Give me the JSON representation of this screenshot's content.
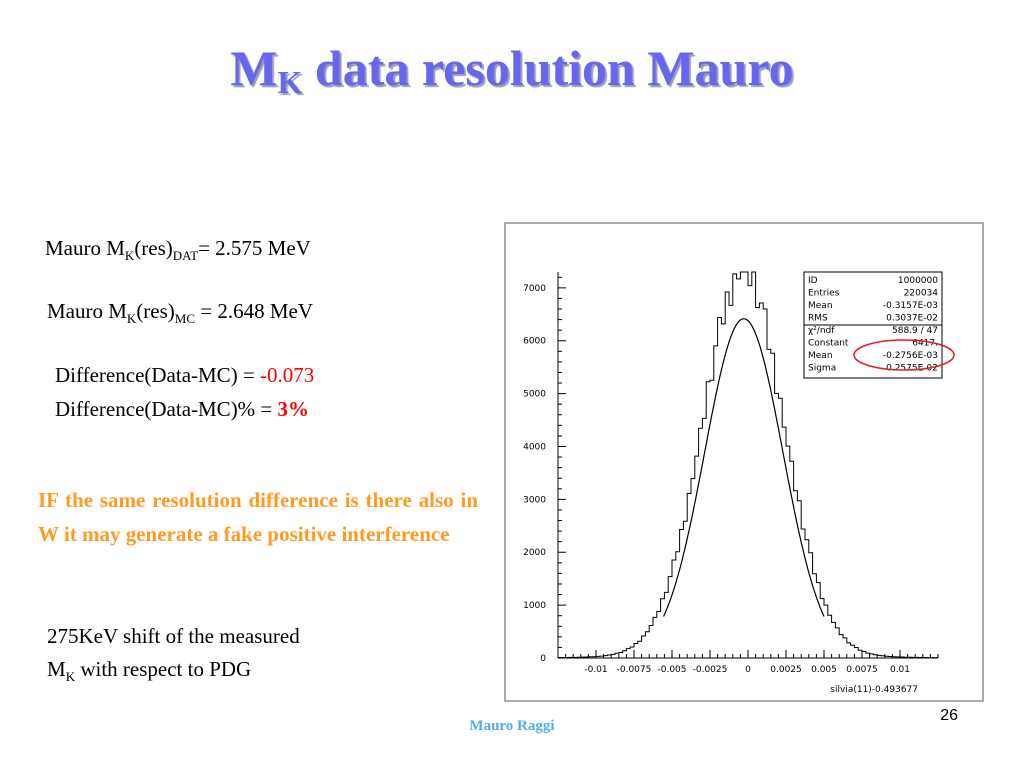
{
  "slide": {
    "title_main": "M",
    "title_sub": "K",
    "title_rest": "data resolution Mauro",
    "page_number": "26",
    "footer": "Mauro Raggi"
  },
  "text": {
    "res_dat": {
      "prefix": "Mauro M",
      "sub1": "K",
      "mid": "(res)",
      "sub2": "DAT",
      "value": "= 2.575 MeV"
    },
    "res_mc": {
      "prefix": "Mauro M",
      "sub1": "K",
      "mid": "(res)",
      "sub2": "MC",
      "value": "= 2.648 MeV"
    },
    "diff_abs": {
      "label": "Difference(Data-MC) = ",
      "value": "-0.073"
    },
    "diff_pct": {
      "label": "Difference(Data-MC)% = ",
      "value": "3%"
    },
    "warning": "IF the same resolution difference is there also in W it may generate a fake positive interference",
    "shift": {
      "line1": "275KeV shift of the measured",
      "pre": "M",
      "sub": "K",
      "post": " with respect to PDG"
    }
  },
  "chart_data": {
    "type": "histogram",
    "xlabel": "silvia(11)-0.493677",
    "xlim": [
      -0.0125,
      0.0125
    ],
    "ylim": [
      0,
      7300
    ],
    "x_tick_values": [
      -0.01,
      -0.0075,
      -0.005,
      -0.0025,
      0,
      0.0025,
      0.005,
      0.0075,
      0.01
    ],
    "x_tick_labels": [
      "-0.01",
      "-0.0075",
      "-0.005",
      "-0.0025",
      "0",
      "0.0025",
      "0.005",
      "0.0075",
      "0.01"
    ],
    "y_tick_values": [
      0,
      1000,
      2000,
      3000,
      4000,
      5000,
      6000,
      7000
    ],
    "y_tick_labels": [
      "0",
      "1000",
      "2000",
      "3000",
      "4000",
      "5000",
      "6000",
      "7000"
    ],
    "histogram": {
      "peak": 7050,
      "center": -0.0003157,
      "sigma": 0.0027,
      "bin_width": 0.00025
    },
    "fit": {
      "type": "gaussian",
      "constant": 6417,
      "mean": -0.0002756,
      "sigma": 0.002575
    },
    "stats_box": [
      {
        "label": "ID",
        "value": "1000000"
      },
      {
        "label": "Entries",
        "value": "220034"
      },
      {
        "label": "Mean",
        "value": "-0.3157E-03"
      },
      {
        "label": "RMS",
        "value": "0.3037E-02"
      },
      {
        "label": "χ²/ndf",
        "value": "588.9   /   47"
      },
      {
        "label": "Constant",
        "value": "6417."
      },
      {
        "label": "Mean",
        "value": "-0.2756E-03"
      },
      {
        "label": "Sigma",
        "value": "0.2575E-02"
      }
    ],
    "highlight": {
      "row": "fit mean",
      "color": "#dd2222"
    }
  }
}
